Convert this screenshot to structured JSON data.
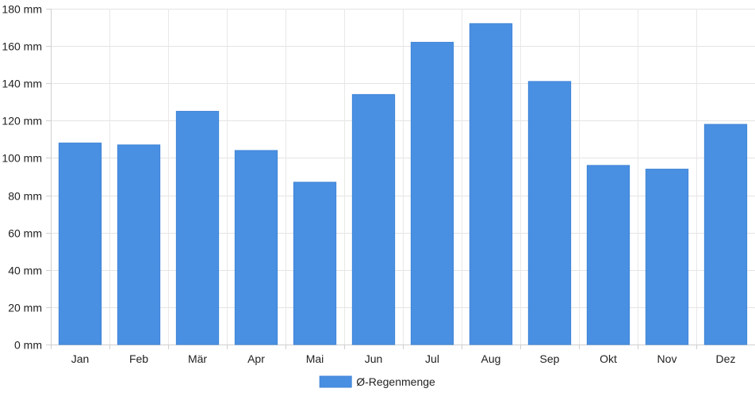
{
  "chart_data": {
    "type": "bar",
    "categories": [
      "Jan",
      "Feb",
      "Mär",
      "Apr",
      "Mai",
      "Jun",
      "Jul",
      "Aug",
      "Sep",
      "Okt",
      "Nov",
      "Dez"
    ],
    "series": [
      {
        "name": "Ø-Regenmenge",
        "values": [
          108,
          107,
          125,
          104,
          87,
          134,
          162,
          172,
          141,
          96,
          94,
          118
        ],
        "color": "#4a90e2"
      }
    ],
    "y_unit": "mm",
    "y_ticks": [
      0,
      20,
      40,
      60,
      80,
      100,
      120,
      140,
      160,
      180
    ],
    "ylim": [
      0,
      180
    ],
    "grid": true,
    "legend_position": "bottom"
  }
}
